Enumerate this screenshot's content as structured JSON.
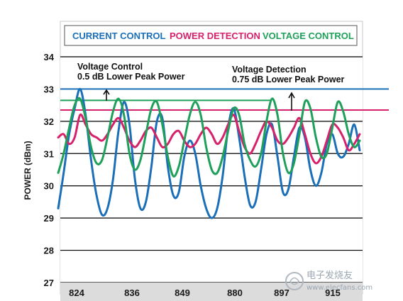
{
  "chart_data": {
    "type": "line",
    "title": "",
    "legend": {
      "placement": "top",
      "entries": [
        {
          "label": "CURRENT CONTROL",
          "color": "#1a6fb8"
        },
        {
          "label": "POWER DETECTION",
          "color": "#d6216b"
        },
        {
          "label": "VOLTAGE CONTROL",
          "color": "#1ea05a"
        }
      ]
    },
    "ylabel": "POWER (dBm)",
    "xlabel": "",
    "ylim": [
      27,
      34
    ],
    "yticks": [
      "27",
      "28",
      "29",
      "30",
      "31",
      "32",
      "33",
      "34"
    ],
    "xticks": [
      "824",
      "836",
      "849",
      "880",
      "897",
      "915"
    ],
    "grid": true,
    "reference_lines": [
      {
        "name": "current-peak",
        "y": 33.0,
        "color": "#1a6fb8"
      },
      {
        "name": "voltage-peak",
        "y": 32.65,
        "color": "#1ea05a"
      },
      {
        "name": "detection-peak",
        "y": 32.35,
        "color": "#d6216b"
      }
    ],
    "annotations": [
      {
        "lines": [
          "Voltage Control",
          "0.5 dB Lower Peak Power"
        ]
      },
      {
        "lines": [
          "Voltage Detection",
          "0.75 dB Lower Peak Power"
        ]
      }
    ],
    "series": [
      {
        "color": "#1a6fb8",
        "values": [
          29.3,
          30.4,
          31.6,
          32.4,
          33.0,
          32.2,
          30.8,
          29.7,
          29.1,
          29.3,
          30.2,
          31.7,
          32.6,
          31.9,
          30.2,
          29.3,
          29.5,
          30.6,
          32.0,
          32.1,
          30.6,
          29.7,
          29.8,
          30.9,
          31.4,
          31.0,
          30.0,
          29.3,
          29.0,
          29.3,
          30.3,
          31.8,
          32.4,
          31.5,
          30.3,
          29.4,
          29.5,
          30.5,
          31.6,
          31.9,
          30.9,
          29.8,
          29.9,
          30.9,
          31.8,
          31.5,
          30.5,
          30.0,
          30.4,
          31.3,
          31.6,
          31.0,
          30.9,
          31.3,
          31.9,
          31.1
        ]
      },
      {
        "color": "#d6216b",
        "values": [
          31.5,
          31.6,
          31.3,
          31.5,
          32.2,
          31.9,
          31.6,
          31.5,
          31.4,
          31.6,
          31.9,
          32.1,
          31.8,
          31.4,
          31.2,
          31.4,
          31.7,
          31.8,
          31.5,
          31.2,
          31.3,
          31.6,
          31.7,
          31.4,
          31.2,
          31.3,
          31.6,
          31.8,
          31.6,
          31.3,
          31.5,
          31.9,
          32.2,
          31.7,
          31.2,
          31.0,
          31.3,
          31.7,
          32.0,
          31.8,
          31.4,
          31.3,
          31.5,
          31.8,
          32.1,
          31.6,
          31.0,
          30.7,
          30.9,
          31.4,
          31.9,
          31.8,
          31.5,
          31.1,
          31.3,
          31.6
        ]
      },
      {
        "color": "#1ea05a",
        "values": [
          30.4,
          31.0,
          31.8,
          32.5,
          32.7,
          32.1,
          31.2,
          30.7,
          30.8,
          31.5,
          32.3,
          32.7,
          32.2,
          31.0,
          30.5,
          30.8,
          31.6,
          32.4,
          32.6,
          31.9,
          30.9,
          30.3,
          30.6,
          31.4,
          32.2,
          32.6,
          32.2,
          31.2,
          30.5,
          30.4,
          30.9,
          31.7,
          32.4,
          32.2,
          31.3,
          30.8,
          30.6,
          31.0,
          32.0,
          32.7,
          32.2,
          31.0,
          30.4,
          30.7,
          31.6,
          32.6,
          32.4,
          31.5,
          30.9,
          31.0,
          31.8,
          32.6,
          32.3,
          31.6,
          31.2,
          31.4
        ]
      }
    ]
  },
  "watermark": {
    "cn": "电子发烧友",
    "url": "www.elecfans.com"
  }
}
